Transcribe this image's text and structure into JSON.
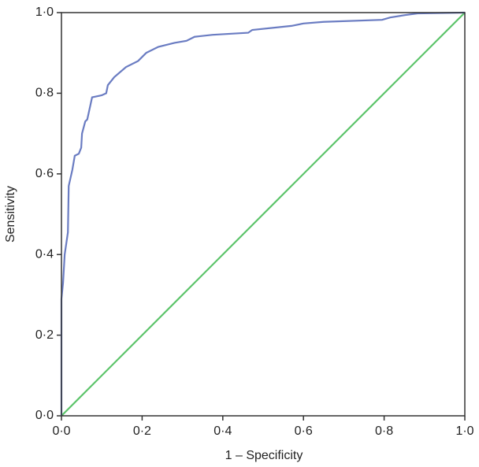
{
  "chart_data": {
    "type": "line",
    "x_label": "1 – Specificity",
    "y_label": "Sensitivity",
    "xlim": [
      0,
      1
    ],
    "ylim": [
      0,
      1
    ],
    "xticks": [
      {
        "value": 0,
        "label": "0·0"
      },
      {
        "value": 0.2,
        "label": "0·2"
      },
      {
        "value": 0.4,
        "label": "0·4"
      },
      {
        "value": 0.6,
        "label": "0·6"
      },
      {
        "value": 0.8,
        "label": "0·8"
      },
      {
        "value": 1,
        "label": "1·0"
      }
    ],
    "yticks": [
      {
        "value": 0,
        "label": "0·0"
      },
      {
        "value": 0.2,
        "label": "0·2"
      },
      {
        "value": 0.4,
        "label": "0·4"
      },
      {
        "value": 0.6,
        "label": "0·6"
      },
      {
        "value": 0.8,
        "label": "0·8"
      },
      {
        "value": 1,
        "label": "1·0"
      }
    ],
    "grid": false,
    "series": [
      {
        "color": "#6a7cc2",
        "x": [
          0,
          0,
          0.004,
          0.008,
          0.016,
          0.018,
          0.027,
          0.033,
          0.043,
          0.049,
          0.051,
          0.059,
          0.064,
          0.076,
          0.1,
          0.111,
          0.115,
          0.131,
          0.16,
          0.19,
          0.21,
          0.24,
          0.28,
          0.31,
          0.33,
          0.375,
          0.463,
          0.473,
          0.57,
          0.6,
          0.65,
          0.795,
          0.815,
          0.853,
          0.883,
          1
        ],
        "values": [
          0,
          0.29,
          0.33,
          0.4,
          0.455,
          0.57,
          0.61,
          0.645,
          0.65,
          0.665,
          0.7,
          0.73,
          0.735,
          0.79,
          0.795,
          0.8,
          0.82,
          0.84,
          0.865,
          0.88,
          0.9,
          0.915,
          0.925,
          0.93,
          0.94,
          0.945,
          0.95,
          0.957,
          0.967,
          0.973,
          0.977,
          0.982,
          0.988,
          0.994,
          0.998,
          1
        ]
      },
      {
        "color": "#5cc46a",
        "x": [
          0,
          1
        ],
        "values": [
          0,
          1
        ]
      }
    ]
  }
}
